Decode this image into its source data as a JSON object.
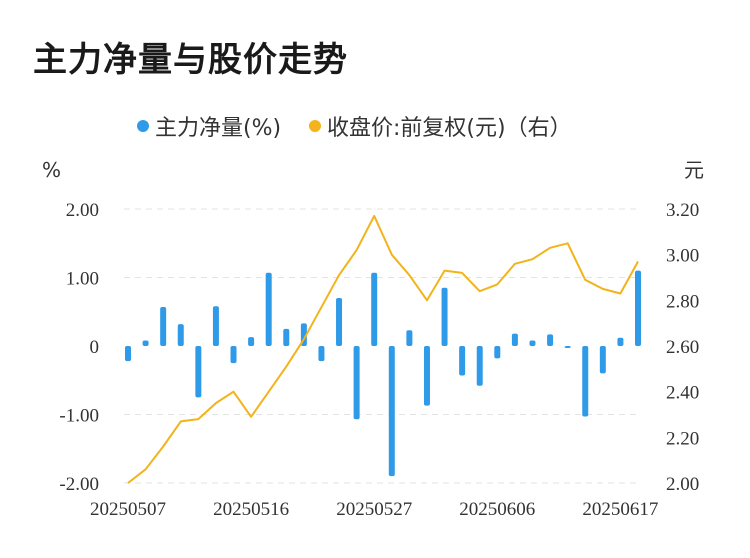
{
  "title": "主力净量与股价走势",
  "chart_data": {
    "type": "bar+line",
    "legend": [
      {
        "name": "主力净量(%)",
        "color": "#2f9ae8"
      },
      {
        "name": "收盘价:前复权(元)（右）",
        "color": "#f2b31b"
      }
    ],
    "left_axis": {
      "unit": "%",
      "ticks": [
        "2.00",
        "1.00",
        "0",
        "-1.00",
        "-2.00"
      ],
      "range": [
        -2,
        2
      ]
    },
    "right_axis": {
      "unit": "元",
      "ticks": [
        "3.20",
        "3.00",
        "2.80",
        "2.60",
        "2.40",
        "2.20",
        "2.00"
      ],
      "range": [
        2.0,
        3.2
      ]
    },
    "x_tick_labels": [
      "20250507",
      "20250516",
      "20250527",
      "20250606",
      "20250617"
    ],
    "x_tick_indices": [
      0,
      7,
      14,
      21,
      28
    ],
    "series": [
      {
        "name": "主力净量(%)",
        "kind": "bar",
        "values": [
          -0.22,
          0.08,
          0.57,
          0.32,
          -0.75,
          0.58,
          -0.25,
          0.13,
          1.07,
          0.25,
          0.33,
          -0.22,
          0.7,
          -1.07,
          1.07,
          -1.9,
          0.23,
          -0.87,
          0.85,
          -0.43,
          -0.58,
          -0.18,
          0.18,
          0.08,
          0.17,
          -0.03,
          -1.03,
          -0.4,
          0.12,
          1.1
        ]
      },
      {
        "name": "收盘价:前复权(元)（右）",
        "kind": "line",
        "values": [
          2.0,
          2.06,
          2.16,
          2.27,
          2.28,
          2.35,
          2.4,
          2.29,
          2.4,
          2.51,
          2.63,
          2.77,
          2.91,
          3.02,
          3.17,
          3.0,
          2.91,
          2.8,
          2.93,
          2.92,
          2.84,
          2.87,
          2.96,
          2.98,
          3.03,
          3.05,
          2.89,
          2.85,
          2.83,
          2.97
        ]
      }
    ]
  }
}
